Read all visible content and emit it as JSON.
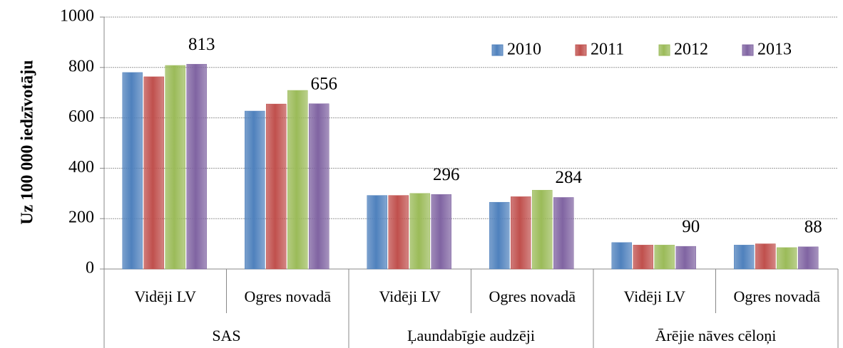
{
  "chart_data": {
    "type": "bar",
    "y_label": "Uz 100 000 iedzīvotāju",
    "categories": [
      "Vidēji LV",
      "Ogres novadā",
      "Vidēji LV",
      "Ogres novadā",
      "Vidēji LV",
      "Ogres novadā"
    ],
    "groups": [
      "SAS",
      "Ļaundabīgie audzēji",
      "Ārējie nāves cēloņi"
    ],
    "series": [
      {
        "name": "2010",
        "color": "#4f81bd",
        "values": [
          780,
          627,
          292,
          265,
          105,
          95
        ]
      },
      {
        "name": "2011",
        "color": "#c0504d",
        "values": [
          763,
          655,
          292,
          287,
          95,
          100
        ]
      },
      {
        "name": "2012",
        "color": "#9bbb59",
        "values": [
          808,
          709,
          300,
          313,
          95,
          85
        ]
      },
      {
        "name": "2013",
        "color": "#8064a2",
        "values": [
          813,
          656,
          296,
          284,
          90,
          88
        ],
        "data_labels": true
      }
    ],
    "ylim": [
      0,
      1000
    ],
    "yticks": [
      0,
      200,
      400,
      600,
      800,
      1000
    ],
    "grid": true,
    "legend": "top-right"
  }
}
